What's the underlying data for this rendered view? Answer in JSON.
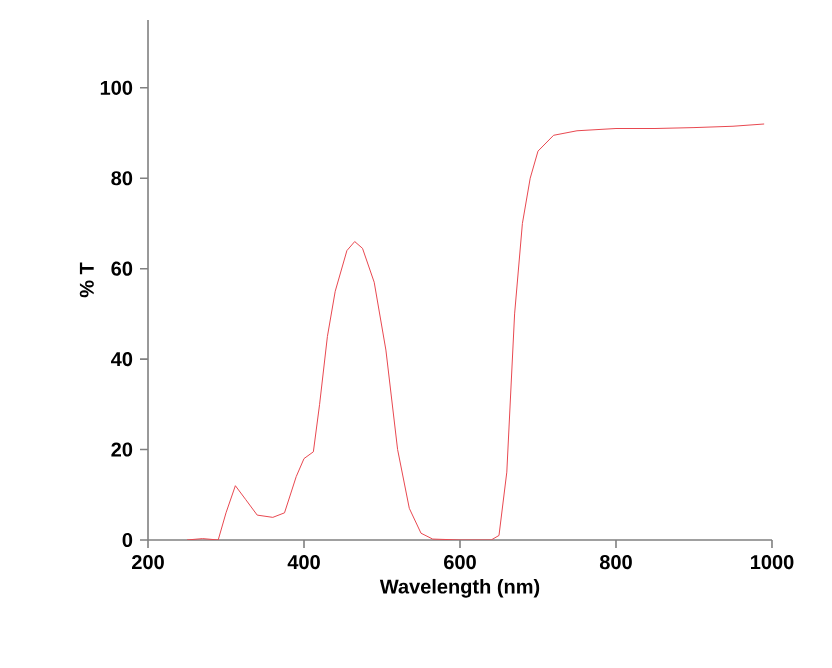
{
  "chart_data": {
    "type": "line",
    "xlabel": "Wavelength (nm)",
    "ylabel": "% T",
    "xlim": [
      200,
      1000
    ],
    "ylim": [
      0,
      115
    ],
    "xticks": [
      200,
      400,
      600,
      800,
      1000
    ],
    "yticks": [
      0,
      20,
      40,
      60,
      80,
      100
    ],
    "grid": false,
    "marker": "none",
    "line_style": "solid",
    "series": [
      {
        "color": "#e8474f",
        "x": [
          250,
          270,
          290,
          300,
          312,
          325,
          340,
          360,
          375,
          390,
          400,
          412,
          420,
          430,
          440,
          455,
          465,
          475,
          490,
          505,
          520,
          535,
          550,
          565,
          600,
          640,
          650,
          660,
          670,
          680,
          690,
          700,
          720,
          750,
          800,
          850,
          900,
          950,
          990
        ],
        "values": [
          0,
          0.3,
          0,
          6,
          12,
          9,
          5.5,
          5,
          6,
          14,
          18,
          19.5,
          30,
          45,
          55,
          64,
          66,
          64.5,
          57,
          42,
          20,
          7,
          1.5,
          0.2,
          0,
          0,
          1,
          15,
          50,
          70,
          80,
          86,
          89.5,
          90.5,
          91,
          91,
          91.2,
          91.5,
          92
        ]
      }
    ]
  }
}
